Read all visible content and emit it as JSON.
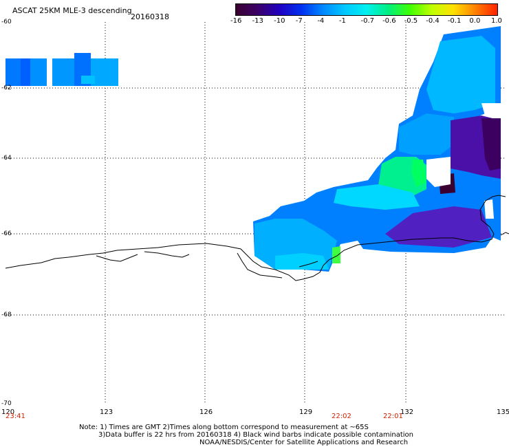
{
  "header": {
    "title": "ASCAT 25KM MLE-3 descending",
    "date": "20160318"
  },
  "colorbar": {
    "labels": [
      "-16",
      "-13",
      "-10",
      "-7",
      "-4",
      "-1",
      "-0.7",
      "-0.6",
      "-0.5",
      "-0.4",
      "-0.1",
      "0.0",
      "1.0"
    ],
    "colors": [
      "#3a0030",
      "#3c0068",
      "#2000c0",
      "#0030f0",
      "#0088ff",
      "#00c8ff",
      "#00f0f0",
      "#00f080",
      "#40ff00",
      "#c0ff00",
      "#ffe000",
      "#ff8000",
      "#ff2000"
    ]
  },
  "axes": {
    "lat_labels": [
      "-60",
      "-62",
      "-64",
      "-66",
      "-68",
      "-70"
    ],
    "lon_labels": [
      "120",
      "123",
      "126",
      "129",
      "132",
      "135"
    ]
  },
  "time_labels": [
    "23:41",
    "22:02",
    "22:01"
  ],
  "footer": {
    "line1": "Note: 1) Times are GMT 2)Times along bottom correspond to measurement at ~65S",
    "line2": "3)Data buffer is 22 hrs from 20160318 4) Black wind barbs indicate possible contamination",
    "line3": "NOAA/NESDIS/Center for Satellite Applications and Research"
  }
}
